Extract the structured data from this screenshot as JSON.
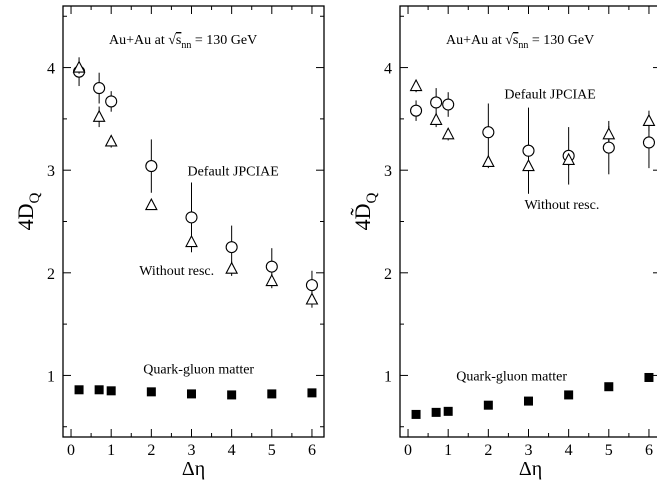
{
  "chart_data": [
    {
      "type": "scatter",
      "xlabel": "Δη",
      "ylabel": {
        "main": "4D",
        "sub": "Q"
      },
      "xlim": [
        -0.2,
        6.3
      ],
      "ylim": [
        0.4,
        4.6
      ],
      "xticks": [
        0,
        1,
        2,
        3,
        4,
        5,
        6
      ],
      "xtick_labels": [
        "0",
        "1",
        "2",
        "3",
        "4",
        "5",
        "6"
      ],
      "yticks": [
        1,
        2,
        3,
        4
      ],
      "ytick_labels": [
        "1",
        "2",
        "3",
        "4"
      ],
      "title": {
        "prefix": "Au+Au at ",
        "sqrt": "s",
        "sub": "nn",
        "suffix": " = 130 GeV"
      },
      "series": [
        {
          "name": "Default JPCIAE",
          "marker": "circle",
          "x": [
            0.2,
            0.7,
            1.0,
            2.0,
            3.0,
            4.0,
            5.0,
            6.0
          ],
          "y": [
            3.96,
            3.8,
            3.67,
            3.04,
            2.54,
            2.25,
            2.06,
            1.88
          ],
          "err": [
            0.14,
            0.15,
            0.1,
            0.26,
            0.34,
            0.21,
            0.18,
            0.14
          ]
        },
        {
          "name": "Without resc.",
          "marker": "triangle",
          "x": [
            0.2,
            0.7,
            1.0,
            2.0,
            3.0,
            4.0,
            5.0,
            6.0
          ],
          "y": [
            4.0,
            3.52,
            3.28,
            2.66,
            2.3,
            2.04,
            1.92,
            1.74
          ],
          "err": [
            0.06,
            0.1,
            0.06,
            0.04,
            0.07,
            0.07,
            0.07,
            0.08
          ]
        },
        {
          "name": "Quark-gluon matter",
          "marker": "square",
          "x": [
            0.2,
            0.7,
            1.0,
            2.0,
            3.0,
            4.0,
            5.0,
            6.0
          ],
          "y": [
            0.86,
            0.86,
            0.85,
            0.84,
            0.82,
            0.81,
            0.82,
            0.83
          ],
          "err": [
            0,
            0,
            0,
            0,
            0,
            0,
            0,
            0
          ]
        }
      ],
      "annotations": [
        {
          "text": "Default JPCIAE",
          "x": 2.9,
          "y": 2.95
        },
        {
          "text": "Without resc.",
          "x": 1.7,
          "y": 1.98
        },
        {
          "text": "Quark-gluon matter",
          "x": 1.8,
          "y": 1.02
        }
      ]
    },
    {
      "type": "scatter",
      "xlabel": "Δη",
      "ylabel": {
        "main": "4D̃",
        "sub": "Q"
      },
      "xlim": [
        -0.2,
        6.3
      ],
      "ylim": [
        0.4,
        4.6
      ],
      "xticks": [
        0,
        1,
        2,
        3,
        4,
        5,
        6
      ],
      "xtick_labels": [
        "0",
        "1",
        "2",
        "3",
        "4",
        "5",
        "6"
      ],
      "yticks": [
        1,
        2,
        3,
        4
      ],
      "ytick_labels": [
        "1",
        "2",
        "3",
        "4"
      ],
      "title": {
        "prefix": "Au+Au at ",
        "sqrt": "s",
        "sub": "nn",
        "suffix": " = 130 GeV"
      },
      "series": [
        {
          "name": "Default JPCIAE",
          "marker": "circle",
          "x": [
            0.2,
            0.7,
            1.0,
            2.0,
            3.0,
            4.0,
            5.0,
            6.0
          ],
          "y": [
            3.58,
            3.66,
            3.64,
            3.37,
            3.19,
            3.14,
            3.22,
            3.27
          ],
          "err": [
            0.1,
            0.14,
            0.12,
            0.28,
            0.42,
            0.28,
            0.26,
            0.25
          ]
        },
        {
          "name": "Without resc.",
          "marker": "triangle",
          "x": [
            0.2,
            0.7,
            1.0,
            2.0,
            3.0,
            4.0,
            5.0,
            6.0
          ],
          "y": [
            3.82,
            3.49,
            3.35,
            3.08,
            3.04,
            3.1,
            3.35,
            3.48
          ],
          "err": [
            0.06,
            0.07,
            0.06,
            0.06,
            0.09,
            0.06,
            0.08,
            0.1
          ]
        },
        {
          "name": "Quark-gluon matter",
          "marker": "square",
          "x": [
            0.2,
            0.7,
            1.0,
            2.0,
            3.0,
            4.0,
            5.0,
            6.0
          ],
          "y": [
            0.62,
            0.64,
            0.65,
            0.71,
            0.75,
            0.81,
            0.89,
            0.98
          ],
          "err": [
            0,
            0,
            0,
            0,
            0,
            0,
            0,
            0
          ]
        }
      ],
      "annotations": [
        {
          "text": "Default JPCIAE",
          "x": 2.4,
          "y": 3.7
        },
        {
          "text": "Without resc.",
          "x": 2.9,
          "y": 2.62
        },
        {
          "text": "Quark-gluon matter",
          "x": 1.2,
          "y": 0.95
        }
      ]
    }
  ]
}
